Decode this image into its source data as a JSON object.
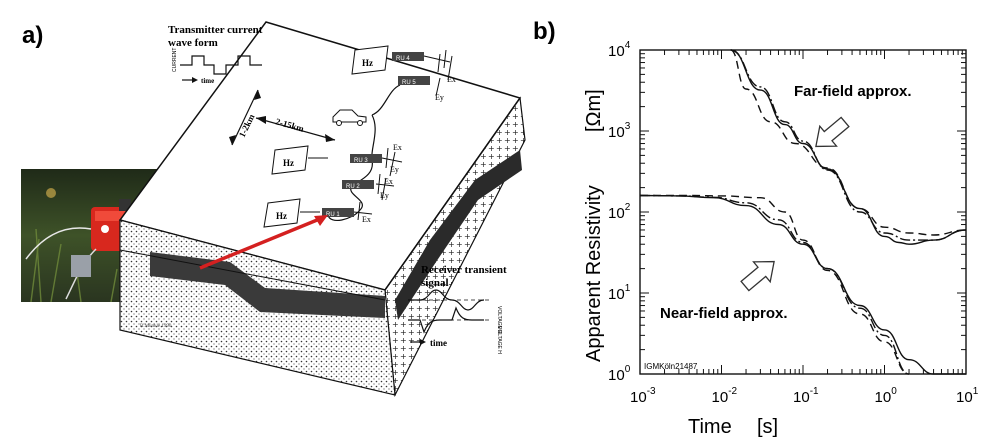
{
  "panels": {
    "a_label": "a)",
    "b_label": "b)"
  },
  "diagram_a": {
    "transmitter_title_line1": "Transmitter current",
    "transmitter_title_line2": "wave form",
    "current_axis": "CURRENT",
    "time_label": "time",
    "distance_short": "1-2km",
    "distance_long": "2-15km",
    "hz_label": "Hz",
    "ex_label": "Ex",
    "ey_label": "Ey",
    "ru_units": [
      "RU 4",
      "RU 3",
      "RU 2",
      "RU 1",
      "RU 5"
    ],
    "receiver_title_line1": "Receiver transient",
    "receiver_title_line2": "signal",
    "voltage_e": "VOLTAGE E",
    "voltage_h": "VOLTAGE H",
    "receiver_time": "time",
    "credit": "B.Münkle 1990"
  },
  "chart_data": {
    "type": "line",
    "title": "",
    "xlabel_word": "Time",
    "xlabel_unit": "[s]",
    "ylabel_word": "Apparent  Resistivity",
    "ylabel_unit": "[Ωm]",
    "x_scale": "log",
    "y_scale": "log",
    "xlim": [
      0.001,
      10
    ],
    "ylim": [
      1,
      10000
    ],
    "x_ticks": [
      {
        "base": "10",
        "exp": "-3"
      },
      {
        "base": "10",
        "exp": "-2"
      },
      {
        "base": "10",
        "exp": "-1"
      },
      {
        "base": "10",
        "exp": "0"
      },
      {
        "base": "10",
        "exp": "1"
      }
    ],
    "y_ticks": [
      {
        "base": "10",
        "exp": "0"
      },
      {
        "base": "10",
        "exp": "1"
      },
      {
        "base": "10",
        "exp": "2"
      },
      {
        "base": "10",
        "exp": "3"
      },
      {
        "base": "10",
        "exp": "4"
      }
    ],
    "annotations": {
      "far_field": "Far-field approx.",
      "near_field": "Near-field approx.",
      "stamp": "IGMKöln21487"
    },
    "series": [
      {
        "style": "solid",
        "x": [
          0.001,
          0.003,
          0.008,
          0.02,
          0.05,
          0.1,
          0.2,
          0.5,
          1,
          2,
          4,
          10
        ],
        "y": [
          160,
          158,
          150,
          120,
          70,
          40,
          20,
          7,
          3.5,
          1.5,
          1,
          1
        ]
      },
      {
        "style": "dash-dot",
        "x": [
          0.001,
          0.003,
          0.008,
          0.02,
          0.05,
          0.1,
          0.2,
          0.5,
          1,
          2
        ],
        "y": [
          160,
          158,
          152,
          130,
          80,
          42,
          20,
          6.5,
          3,
          1
        ]
      },
      {
        "style": "dashed",
        "x": [
          0.001,
          0.004,
          0.01,
          0.03,
          0.06,
          0.1,
          0.2,
          0.5,
          1,
          2
        ],
        "y": [
          160,
          160,
          158,
          150,
          100,
          45,
          19,
          5.5,
          2.5,
          1
        ]
      },
      {
        "style": "solid",
        "x": [
          0.013,
          0.03,
          0.06,
          0.1,
          0.2,
          0.5,
          1,
          1.5,
          2,
          4,
          10
        ],
        "y": [
          10000,
          3200,
          1200,
          700,
          340,
          110,
          50,
          42,
          40,
          45,
          60
        ]
      },
      {
        "style": "dash-dot",
        "x": [
          0.013,
          0.03,
          0.06,
          0.1,
          0.2,
          0.5,
          1,
          2,
          4,
          10
        ],
        "y": [
          10000,
          3500,
          1300,
          750,
          330,
          100,
          55,
          45,
          45,
          60
        ]
      },
      {
        "style": "dashed",
        "x": [
          0.013,
          0.02,
          0.04,
          0.08,
          0.2,
          0.5,
          1,
          2,
          4,
          10
        ],
        "y": [
          10000,
          3300,
          1300,
          700,
          350,
          110,
          65,
          55,
          52,
          60
        ]
      }
    ]
  }
}
